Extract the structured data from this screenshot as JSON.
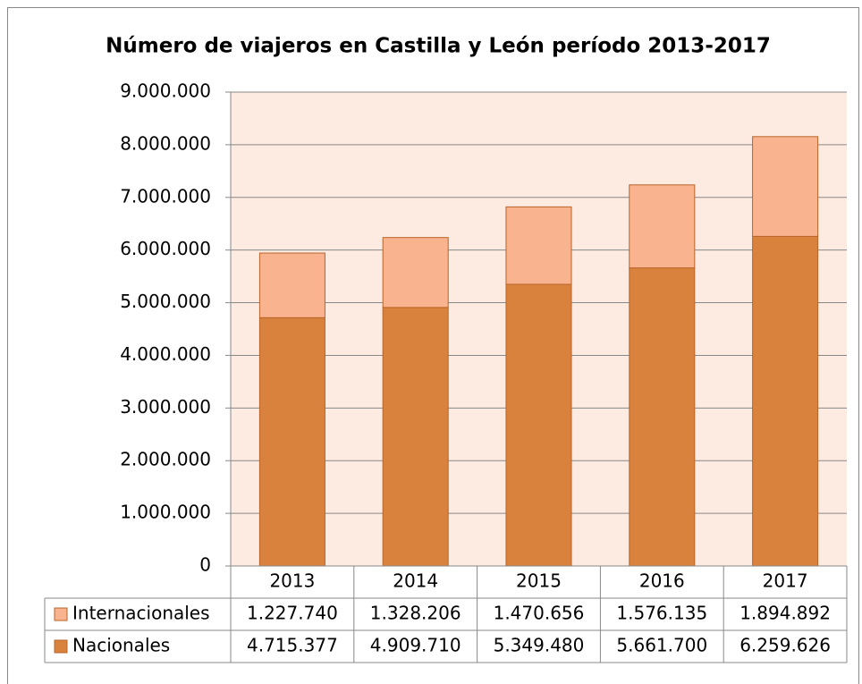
{
  "chart_data": {
    "type": "stacked_bar",
    "title": "Número de viajeros en Castilla y León período 2013-2017",
    "categories": [
      "2013",
      "2014",
      "2015",
      "2016",
      "2017"
    ],
    "series": [
      {
        "name": "Nacionales",
        "color": "#d9823e",
        "values": [
          4715377,
          4909710,
          5349480,
          5661700,
          6259626
        ],
        "value_labels": [
          "4.715.377",
          "4.909.710",
          "5.349.480",
          "5.661.700",
          "6.259.626"
        ]
      },
      {
        "name": "Internacionales",
        "color": "#f9b38f",
        "values": [
          1227740,
          1328206,
          1470656,
          1576135,
          1894892
        ],
        "value_labels": [
          "1.227.740",
          "1.328.206",
          "1.470.656",
          "1.576.135",
          "1.894.892"
        ]
      }
    ],
    "ylim": [
      0,
      9000000
    ],
    "yticks": [
      0,
      {
        "value": 1000000,
        "label": "1.000.000"
      },
      {
        "value": 2000000,
        "label": "2.000.000"
      },
      {
        "value": 3000000,
        "label": "3.000.000"
      },
      {
        "value": 4000000,
        "label": "4.000.000"
      },
      {
        "value": 5000000,
        "label": "5.000.000"
      },
      {
        "value": 6000000,
        "label": "6.000.000"
      },
      {
        "value": 7000000,
        "label": "7.000.000"
      },
      {
        "value": 8000000,
        "label": "8.000.000"
      },
      {
        "value": 9000000,
        "label": "9.000.000"
      }
    ],
    "grid": true,
    "data_table": true
  }
}
